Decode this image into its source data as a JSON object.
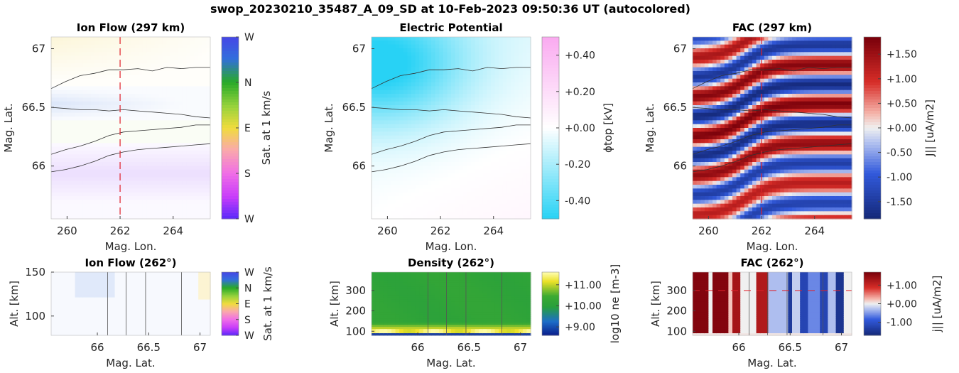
{
  "figure_title": "swop_20230210_35487_A_09_SD at 10-Feb-2023 09:50:36 UT (autocolored)",
  "chart_data": [
    {
      "id": "ion_flow_map",
      "type": "heatmap",
      "title": "Ion Flow (297 km)",
      "xlabel": "Mag. Lon.",
      "ylabel": "Mag. Lat.",
      "xlim": [
        259.4,
        265.4
      ],
      "ylim": [
        65.55,
        67.1
      ],
      "xticks": [
        {
          "v": 260,
          "t": "260"
        },
        {
          "v": 262,
          "t": "262"
        },
        {
          "v": 264,
          "t": "264"
        }
      ],
      "yticks": [
        {
          "v": 66,
          "t": "66"
        },
        {
          "v": 66.5,
          "t": "66.5"
        },
        {
          "v": 67,
          "t": "67"
        }
      ],
      "vline": 262,
      "colorbar": {
        "label": "Sat. at 1 km/s",
        "ticks": [
          {
            "p": 1,
            "t": "W"
          },
          {
            "p": 0.75,
            "t": "N"
          },
          {
            "p": 0.5,
            "t": "E"
          },
          {
            "p": 0.25,
            "t": "S"
          },
          {
            "p": 0,
            "t": "W"
          }
        ]
      }
    },
    {
      "id": "potential_map",
      "type": "heatmap",
      "title": "Electric Potential",
      "xlabel": "Mag. Lon.",
      "ylabel": "Mag. Lat.",
      "xlim": [
        259.4,
        265.4
      ],
      "ylim": [
        65.55,
        67.1
      ],
      "xticks": [
        {
          "v": 260,
          "t": "260"
        },
        {
          "v": 262,
          "t": "262"
        },
        {
          "v": 264,
          "t": "264"
        }
      ],
      "yticks": [
        {
          "v": 66,
          "t": "66"
        },
        {
          "v": 66.5,
          "t": "66.5"
        },
        {
          "v": 67,
          "t": "67"
        }
      ],
      "colorbar": {
        "label": "ϕtop [kV]",
        "range": [
          -0.5,
          0.5
        ],
        "ticks": [
          {
            "v": 0.4,
            "t": "+0.40"
          },
          {
            "v": 0.2,
            "t": "+0.20"
          },
          {
            "v": 0,
            "t": "+0.00"
          },
          {
            "v": -0.2,
            "t": "-0.20"
          },
          {
            "v": -0.4,
            "t": "-0.40"
          }
        ]
      }
    },
    {
      "id": "fac_map",
      "type": "heatmap",
      "title": "FAC (297 km)",
      "xlabel": "Mag. Lon.",
      "ylabel": "Mag. Lat.",
      "xlim": [
        259.4,
        265.4
      ],
      "ylim": [
        65.55,
        67.1
      ],
      "xticks": [
        {
          "v": 260,
          "t": "260"
        },
        {
          "v": 262,
          "t": "262"
        },
        {
          "v": 264,
          "t": "264"
        }
      ],
      "yticks": [
        {
          "v": 66,
          "t": "66"
        },
        {
          "v": 66.5,
          "t": "66.5"
        },
        {
          "v": 67,
          "t": "67"
        }
      ],
      "vline": 262,
      "colorbar": {
        "label": "J|| [uA/m2]",
        "range": [
          -1.85,
          1.85
        ],
        "ticks": [
          {
            "v": 1.5,
            "t": "+1.50"
          },
          {
            "v": 1.0,
            "t": "+1.00"
          },
          {
            "v": 0.5,
            "t": "+0.50"
          },
          {
            "v": 0,
            "t": "+0.00"
          },
          {
            "v": -0.5,
            "t": "-0.50"
          },
          {
            "v": -1.0,
            "t": "-1.00"
          },
          {
            "v": -1.5,
            "t": "-1.50"
          }
        ]
      }
    },
    {
      "id": "ion_flow_alt",
      "type": "heatmap",
      "title": "Ion Flow (262°)",
      "xlabel": "Mag. Lat.",
      "ylabel": "Alt. [km]",
      "xlim": [
        65.55,
        67.1
      ],
      "ylim": [
        78,
        150
      ],
      "xticks": [
        {
          "v": 66,
          "t": "66"
        },
        {
          "v": 66.5,
          "t": "66.5"
        },
        {
          "v": 67,
          "t": "67"
        }
      ],
      "yticks": [
        {
          "v": 100,
          "t": "100"
        },
        {
          "v": 150,
          "t": "150"
        }
      ],
      "vlines": [
        66.1,
        66.28,
        66.47,
        66.82
      ],
      "colorbar": {
        "label": "Sat. at 1 km/s",
        "ticks": [
          {
            "p": 1,
            "t": "W"
          },
          {
            "p": 0.75,
            "t": "N"
          },
          {
            "p": 0.5,
            "t": "E"
          },
          {
            "p": 0.25,
            "t": "S"
          },
          {
            "p": 0,
            "t": "W"
          }
        ]
      }
    },
    {
      "id": "density_alt",
      "type": "heatmap",
      "title": "Density (262°)",
      "xlabel": "Mag. Lat.",
      "ylabel": "Alt. [km]",
      "xlim": [
        65.55,
        67.1
      ],
      "ylim": [
        80,
        390
      ],
      "xticks": [
        {
          "v": 66,
          "t": "66"
        },
        {
          "v": 66.5,
          "t": "66.5"
        },
        {
          "v": 67,
          "t": "67"
        }
      ],
      "yticks": [
        {
          "v": 100,
          "t": "100"
        },
        {
          "v": 200,
          "t": "200"
        },
        {
          "v": 300,
          "t": "300"
        }
      ],
      "vlines": [
        66.1,
        66.28,
        66.47,
        66.82
      ],
      "colorbar": {
        "label": "log10 ne [m-3]",
        "range": [
          8.6,
          11.6
        ],
        "ticks": [
          {
            "v": 11,
            "t": "+11.00"
          },
          {
            "v": 10,
            "t": "+10.00"
          },
          {
            "v": 9,
            "t": "+9.00"
          }
        ]
      }
    },
    {
      "id": "fac_alt",
      "type": "heatmap",
      "title": "FAC (262°)",
      "xlabel": "Mag. Lat.",
      "ylabel": "Alt. [km]",
      "xlim": [
        65.55,
        67.1
      ],
      "ylim": [
        80,
        390
      ],
      "xticks": [
        {
          "v": 66,
          "t": "66"
        },
        {
          "v": 66.5,
          "t": "66.5"
        },
        {
          "v": 67,
          "t": "67"
        }
      ],
      "yticks": [
        {
          "v": 100,
          "t": "100"
        },
        {
          "v": 200,
          "t": "200"
        },
        {
          "v": 300,
          "t": "300"
        }
      ],
      "vlines": [
        66.1,
        66.28,
        66.47,
        66.82
      ],
      "hline": 300,
      "colorbar": {
        "label": "j|| [uA/m2]",
        "range": [
          -1.7,
          1.7
        ],
        "ticks": [
          {
            "v": 1,
            "t": "+1.00"
          },
          {
            "v": 0,
            "t": "+0.00"
          },
          {
            "v": -1,
            "t": "-1.00"
          }
        ]
      }
    }
  ]
}
